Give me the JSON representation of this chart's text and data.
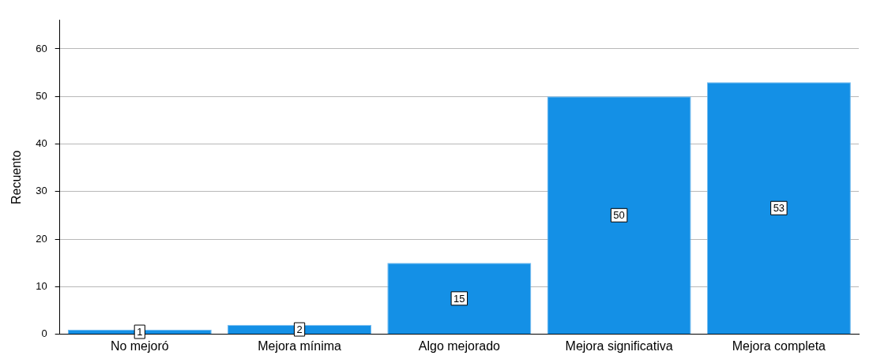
{
  "chart_data": {
    "type": "bar",
    "ylabel": "Recuento",
    "categories": [
      "No mejoró",
      "Mejora mínima",
      "Algo mejorado",
      "Mejora significativa",
      "Mejora completa"
    ],
    "values": [
      1,
      2,
      15,
      50,
      53
    ],
    "color": "#1490e6",
    "ylim": [
      0,
      66
    ],
    "yticks": [
      0,
      10,
      20,
      30,
      40,
      50,
      60
    ],
    "grid": "y",
    "data_labels": true,
    "legend": false
  }
}
